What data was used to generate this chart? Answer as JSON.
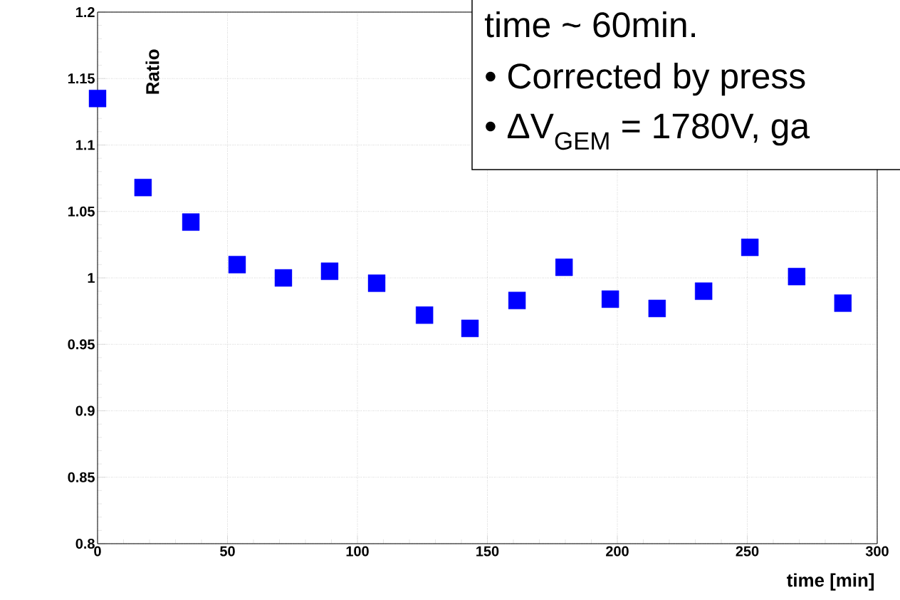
{
  "chart_data": {
    "type": "scatter",
    "xlabel": "time [min]",
    "ylabel": "Ratio",
    "annotations": [
      "time ~ 60min.",
      "• Corrected by press",
      "• ΔV$_{GEM}$ = 1780V, ga"
    ],
    "x": [
      0,
      17.5,
      35.9,
      53.7,
      71.5,
      89.3,
      107.4,
      125.8,
      143.3,
      161.4,
      179.5,
      197.3,
      215.3,
      233.2,
      251,
      269,
      286.8
    ],
    "values": [
      1.135,
      1.068,
      1.042,
      1.01,
      1.0,
      1.005,
      0.996,
      0.972,
      0.962,
      0.983,
      1.008,
      0.984,
      0.977,
      0.99,
      1.023,
      1.001,
      0.981
    ],
    "color": "#0000ff",
    "marker": "square",
    "grid": true,
    "xlim": [
      0,
      300
    ],
    "ylim": [
      0.8,
      1.2
    ],
    "xticks": [
      0,
      50,
      100,
      150,
      200,
      250,
      300
    ],
    "yticks": [
      0.8,
      0.85,
      0.9,
      0.95,
      1,
      1.05,
      1.1,
      1.15,
      1.2
    ]
  }
}
